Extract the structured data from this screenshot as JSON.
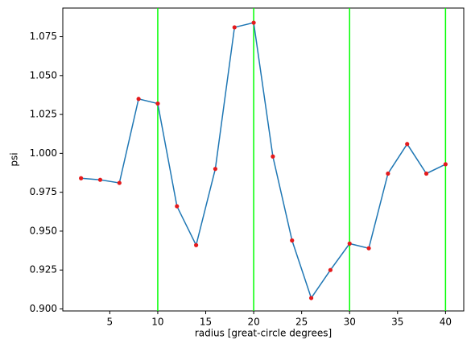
{
  "chart_data": {
    "type": "line",
    "x_label": "radius [great-circle degrees]",
    "y_label": "psi",
    "x": [
      2,
      4,
      6,
      8,
      10,
      12,
      14,
      16,
      18,
      20,
      22,
      24,
      26,
      28,
      30,
      32,
      34,
      36,
      38,
      40
    ],
    "series": [
      {
        "color": "#1f77b4",
        "marker_color": "#e41a1c",
        "values": [
          0.984,
          0.983,
          0.981,
          1.035,
          1.032,
          0.966,
          0.941,
          0.99,
          1.081,
          1.084,
          0.998,
          0.944,
          0.907,
          0.925,
          0.942,
          0.939,
          0.987,
          1.006,
          0.987,
          0.993
        ]
      }
    ],
    "vlines": [
      10,
      20,
      30,
      40
    ],
    "vline_color": "#00ff00",
    "xlim": [
      0.1,
      41.9
    ],
    "xticks": [
      5,
      10,
      15,
      20,
      25,
      30,
      35,
      40
    ],
    "ylim": [
      0.8987,
      1.0934
    ],
    "yticks": [
      {
        "value": 0.9,
        "label": "0.900"
      },
      {
        "value": 0.925,
        "label": "0.925"
      },
      {
        "value": 0.95,
        "label": "0.950"
      },
      {
        "value": 0.975,
        "label": "0.975"
      },
      {
        "value": 1.0,
        "label": "1.000"
      },
      {
        "value": 1.025,
        "label": "1.025"
      },
      {
        "value": 1.05,
        "label": "1.050"
      },
      {
        "value": 1.075,
        "label": "1.075"
      }
    ]
  }
}
